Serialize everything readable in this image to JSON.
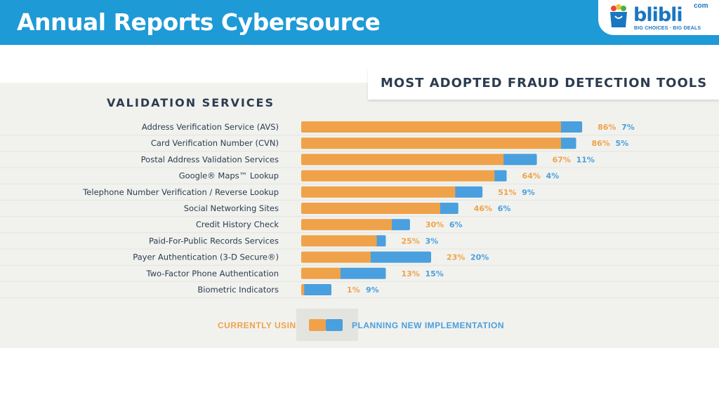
{
  "slide": {
    "title": "Annual Reports Cybersource"
  },
  "logo": {
    "brand": "blibli",
    "suffix": "com",
    "tagline": "BIG CHOICES · BIG DEALS"
  },
  "colors": {
    "header": "#1e9ad6",
    "current": "#f0a24a",
    "planning": "#4a9fde",
    "text": "#2c3c50"
  },
  "chart_data": {
    "type": "bar",
    "orientation": "horizontal",
    "stacked": true,
    "title": "MOST ADOPTED FRAUD DETECTION TOOLS",
    "section": "VALIDATION SERVICES",
    "unit": "%",
    "xlim": [
      0,
      100
    ],
    "categories": [
      "Address Verification Service (AVS)",
      "Card Verification Number (CVN)",
      "Postal Address Validation Services",
      "Google® Maps™ Lookup",
      "Telephone Number Verification / Reverse Lookup",
      "Social Networking Sites",
      "Credit History Check",
      "Paid-For-Public Records Services",
      "Payer Authentication (3-D Secure®)",
      "Two-Factor Phone Authentication",
      "Biometric Indicators"
    ],
    "series": [
      {
        "name": "CURRENTLY USING",
        "values": [
          86,
          86,
          67,
          64,
          51,
          46,
          30,
          25,
          23,
          13,
          1
        ]
      },
      {
        "name": "PLANNING NEW IMPLEMENTATION",
        "values": [
          7,
          5,
          11,
          4,
          9,
          6,
          6,
          3,
          20,
          15,
          9
        ]
      }
    ],
    "legend": [
      "CURRENTLY USING",
      "PLANNING NEW IMPLEMENTATION"
    ]
  }
}
